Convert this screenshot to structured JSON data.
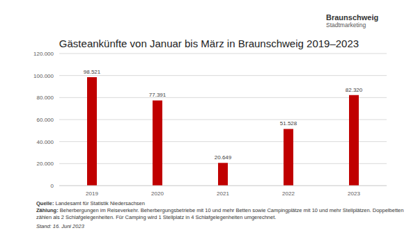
{
  "chart_data": {
    "type": "bar",
    "title": "Gästeankünfte von Januar bis März in Braunschweig 2019–2023",
    "categories": [
      "2019",
      "2020",
      "2021",
      "2022",
      "2023"
    ],
    "values": [
      98521,
      77391,
      20649,
      51528,
      82320
    ],
    "value_labels": [
      "98.521",
      "77.391",
      "20.649",
      "51.528",
      "82.320"
    ],
    "color": "#c00000",
    "ylim": [
      0,
      120000
    ],
    "yticks": [
      0,
      {
        "value": 20000,
        "label": "20.000"
      },
      {
        "value": 40000,
        "label": "40.000"
      },
      {
        "value": 60000,
        "label": "60.000"
      },
      {
        "value": 80000,
        "label": "80.000"
      },
      {
        "value": 100000,
        "label": "100.000"
      },
      {
        "value": 120000,
        "label": "120.000"
      }
    ],
    "grid": true,
    "data_labels": true,
    "logo_title": "Braunschweig",
    "logo_subtitle": "Stadtmarketing",
    "source_label": "Quelle:",
    "source": "Landesamt für Statistik Niedersachsen",
    "note_label": "Zählung:",
    "note": "Beherbergungen im Reiseverkehr. Beherbergungsbetriebe mit 10 und mehr Betten sowie Campingplätze mit 10 und mehr Stellplätzen. Doppelbetten zählen als 2 Schlafgelegenheiten. Für Camping wird 1 Stellplatz in 4 Schlafgelegenheiten umgerechnet.",
    "date": "Stand: 16. Juni 2023"
  }
}
